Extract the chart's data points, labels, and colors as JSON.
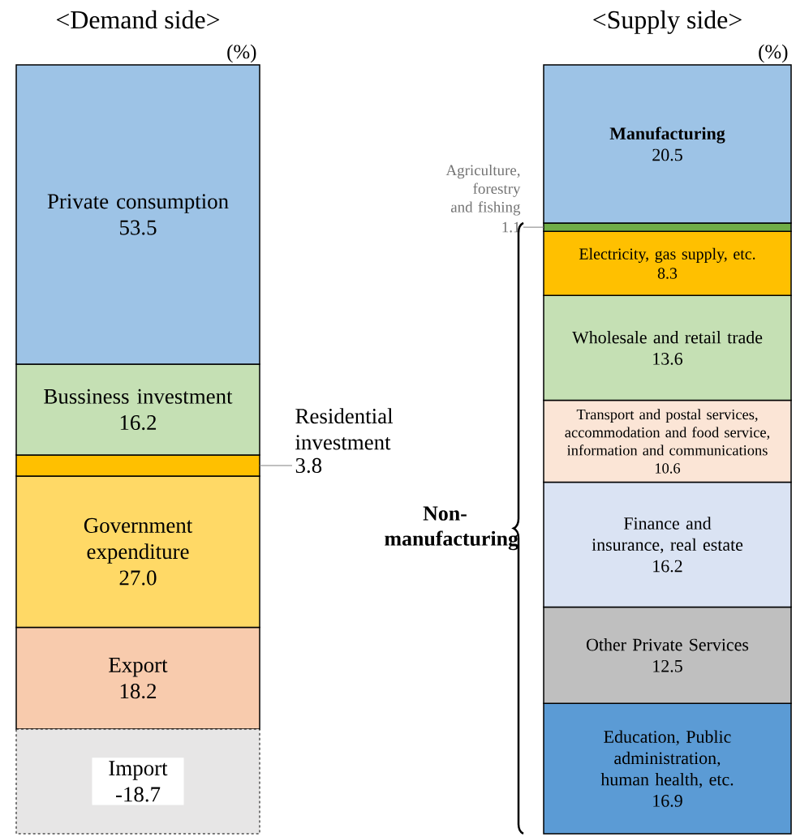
{
  "chart_data": [
    {
      "type": "bar",
      "title": "<Demand side>",
      "ylabel": "(%)",
      "categories": [
        null
      ],
      "stacked": true,
      "ylim": [
        -18.7,
        118.7
      ],
      "series": [
        {
          "name": "Export",
          "color": "#f8cbad",
          "values": [
            18.2
          ],
          "value_labels": [
            "18.2"
          ]
        },
        {
          "name": "Government expenditure",
          "color": "#ffd966",
          "values": [
            27.0
          ],
          "value_labels": [
            "27.0"
          ]
        },
        {
          "name": "Residential investment",
          "color": "#ffc000",
          "values": [
            3.8
          ],
          "value_labels": [
            "3.8"
          ]
        },
        {
          "name": "Bussiness investment",
          "color": "#c5e0b4",
          "values": [
            16.2
          ],
          "value_labels": [
            "16.2"
          ]
        },
        {
          "name": "Private consumption",
          "color": "#9dc3e6",
          "values": [
            53.5
          ],
          "value_labels": [
            "53.5"
          ]
        },
        {
          "name": "Import",
          "color": "#e7e6e6",
          "values": [
            -18.7
          ],
          "value_labels": [
            "-18.7"
          ]
        }
      ]
    },
    {
      "type": "bar",
      "title": "<Supply side>",
      "ylabel": "(%)",
      "categories": [
        null
      ],
      "stacked": true,
      "ylim": [
        0,
        99.7
      ],
      "annotations": [
        "Non-manufacturing"
      ],
      "series": [
        {
          "name": "Education, Public administration, human health, etc.",
          "color": "#5b9bd5",
          "values": [
            16.9
          ],
          "value_labels": [
            "16.9"
          ]
        },
        {
          "name": "Other Private Services",
          "color": "#bfbfbf",
          "values": [
            12.5
          ],
          "value_labels": [
            "12.5"
          ]
        },
        {
          "name": "Finance and insurance, real estate",
          "color": "#dae3f3",
          "values": [
            16.2
          ],
          "value_labels": [
            "16.2"
          ]
        },
        {
          "name": "Transport and postal services, accommodation and food service, information and communications",
          "color": "#fbe5d6",
          "values": [
            10.6
          ],
          "value_labels": [
            "10.6"
          ]
        },
        {
          "name": "Wholesale and retail trade",
          "color": "#c5e0b4",
          "values": [
            13.6
          ],
          "value_labels": [
            "13.6"
          ]
        },
        {
          "name": "Electricity, gas supply, etc.",
          "color": "#ffc000",
          "values": [
            8.3
          ],
          "value_labels": [
            "8.3"
          ]
        },
        {
          "name": "Agriculture, forestry and fishing",
          "color": "#70ad47",
          "values": [
            1.1
          ],
          "value_labels": [
            "1.1"
          ]
        },
        {
          "name": "**Manufacturing**",
          "color": "#9dc3e6",
          "values": [
            20.5
          ],
          "value_labels": [
            "20.5"
          ]
        }
      ]
    }
  ]
}
